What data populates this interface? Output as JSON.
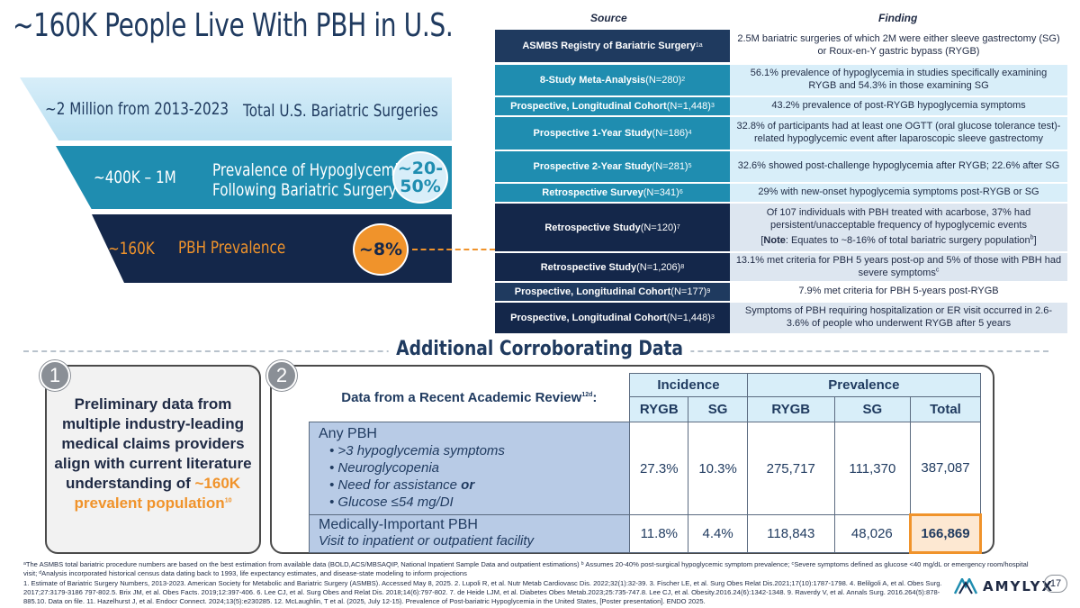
{
  "title": "~160K People Live With PBH in U.S.",
  "funnel": {
    "tier1": {
      "left": "~2 Million from 2013-2023",
      "right": "Total U.S. Bariatric Surgeries"
    },
    "tier2": {
      "left": "~400K – 1M",
      "right_line1": "Prevalence of Hypoglycemia",
      "right_line2": "Following Bariatric Surgery",
      "pill_line1": "~20-",
      "pill_line2": "50%"
    },
    "tier3": {
      "left": "~160K",
      "right": "PBH Prevalence",
      "pill": "~8%"
    }
  },
  "table": {
    "col_source": "Source",
    "col_finding": "Finding",
    "rows": [
      {
        "src": "ASMBS Registry of Bariatric Surgery",
        "n": "",
        "sup": "1a",
        "finding": "2.5M bariatric surgeries of which 2M were either sleeve gastrectomy (SG) or Roux-en-Y gastric bypass (RYGB)"
      },
      {
        "src": "8-Study Meta-Analysis",
        "n": " (N=280)",
        "sup": "2",
        "finding": "56.1% prevalence of hypoglycemia in studies specifically examining RYGB and 54.3% in those examining SG"
      },
      {
        "src": "Prospective, Longitudinal Cohort",
        "n": " (N=1,448)",
        "sup": "3",
        "finding": "43.2% prevalence of post-RYGB hypoglycemia symptoms"
      },
      {
        "src": "Prospective 1-Year Study",
        "n": " (N=186)",
        "sup": "4",
        "finding": "32.8% of participants had at least one OGTT (oral glucose tolerance test)-related hypoglycemic event after laparoscopic sleeve gastrectomy"
      },
      {
        "src": "Prospective 2-Year Study",
        "n": " (N=281)",
        "sup": "5",
        "finding": "32.6% showed post-challenge hypoglycemia after RYGB; 22.6% after SG"
      },
      {
        "src": "Retrospective Survey",
        "n": " (N=341)",
        "sup": "6",
        "finding": "29% with new-onset hypoglycemia symptoms post-RYGB or SG"
      },
      {
        "src": "Retrospective Study",
        "n": " (N=120)",
        "sup": "7",
        "finding": "Of 107 individuals with PBH treated with acarbose, 37% had persistent/unacceptable frequency of hypoglycemic events",
        "note_bold": "Note",
        "note_text": ": Equates to ~8-16% of total bariatric surgery population",
        "note_sup": "b"
      },
      {
        "src": "Retrospective Study",
        "n": " (N=1,206)",
        "sup": "8",
        "finding": "13.1% met criteria for PBH 5 years post-op and 5% of those with PBH had severe symptoms",
        "finding_sup": "c"
      },
      {
        "src": "Prospective, Longitudinal Cohort",
        "n": " (N=177)",
        "sup": "9",
        "finding": "7.9% met criteria for PBH 5-years post-RYGB"
      },
      {
        "src": "Prospective, Longitudinal Cohort",
        "n": " (N=1,448)",
        "sup": "3",
        "finding": "Symptoms of PBH requiring hospitalization or ER visit occurred in 2.6-3.6% of people who underwent RYGB after 5 years"
      }
    ]
  },
  "additional_title": "Additional Corroborating Data",
  "box1": {
    "number": "1",
    "text": "Preliminary data from multiple industry-leading medical claims providers align with current literature understanding of ",
    "highlight": "~160K prevalent population",
    "sup": "10"
  },
  "box2": {
    "number": "2",
    "label": "Data from a Recent Academic Review",
    "label_sup": "12d",
    "label_colon": ":",
    "group_incidence": "Incidence",
    "group_prevalence": "Prevalence",
    "cols": [
      "RYGB",
      "SG",
      "RYGB",
      "SG",
      "Total"
    ],
    "row1": {
      "title": "Any PBH",
      "bullets": [
        ">3 hypoglycemia symptoms",
        "Neuroglycopenia",
        "Need for assistance",
        "Glucose ≤54 mg/DI"
      ],
      "bullet3_suffix": "or",
      "values": [
        "27.3%",
        "10.3%",
        "275,717",
        "111,370",
        "387,087"
      ]
    },
    "row2": {
      "title": "Medically-Important PBH",
      "subtitle": "Visit to inpatient or outpatient facility",
      "values": [
        "11.8%",
        "4.4%",
        "118,843",
        "48,026",
        "166,869"
      ]
    }
  },
  "footnotes": {
    "line1": "ᵃThe ASMBS total bariatric procedure numbers are based on the best estimation from available data (BOLD,ACS/MBSAQIP, National Inpatient Sample Data and outpatient estimations) ᵇ Assumes 20-40% post-surgical hypoglycemic symptom prevalence; ᶜSevere symptoms defined as glucose <40 mg/dL or emergency room/hospital visit; ᵈAnalysis incorporated historical census data dating back to 1993, life expectancy estimates, and disease-state modeling to inform projections",
    "line2": "1. Estimate of Bariatric Surgery Numbers, 2013-2023. American Society for Metabolic and Bariatric Surgery (ASMBS). Accessed May 8, 2025. 2. Lupoli R, et al. Nutr Metab Cardiovasc Dis. 2022;32(1):32-39. 3. Fischer LE, et al. Surg Obes Relat Dis.2021;17(10):1787-1798. 4. Belilgoli A, et al. Obes Surg. 2017;27:3179-3186 797-802.5. Brix JM, et al. Obes Facts. 2019;12:397-406. 6. Lee CJ, et al. Surg Obes and Relat Dis. 2018;14(6):797-802. 7. de Heide LJM, et al. Diabetes Obes Metab.2023;25:735-747.8. Lee CJ, et al. Obesity.2016.24(6):1342-1348. 9. Raverdy V, et al. Annals Surg. 2016.264(5):878-885.10. Data on file. 11. Hazelhurst J, et al. Endocr Connect. 2024;13(5):e230285. 12. McLaughlin, T et al. (2025, July 12-15). Prevalence of Post-bariatric Hypoglycemia in the United States, [Poster presentation]. ENDO 2025."
  },
  "page_number": "17",
  "logo_text": "AMYLYX",
  "colors": {
    "navy": "#14274a",
    "teal": "#1f8db0",
    "light_blue": "#d8eef9",
    "orange": "#f0932b"
  }
}
